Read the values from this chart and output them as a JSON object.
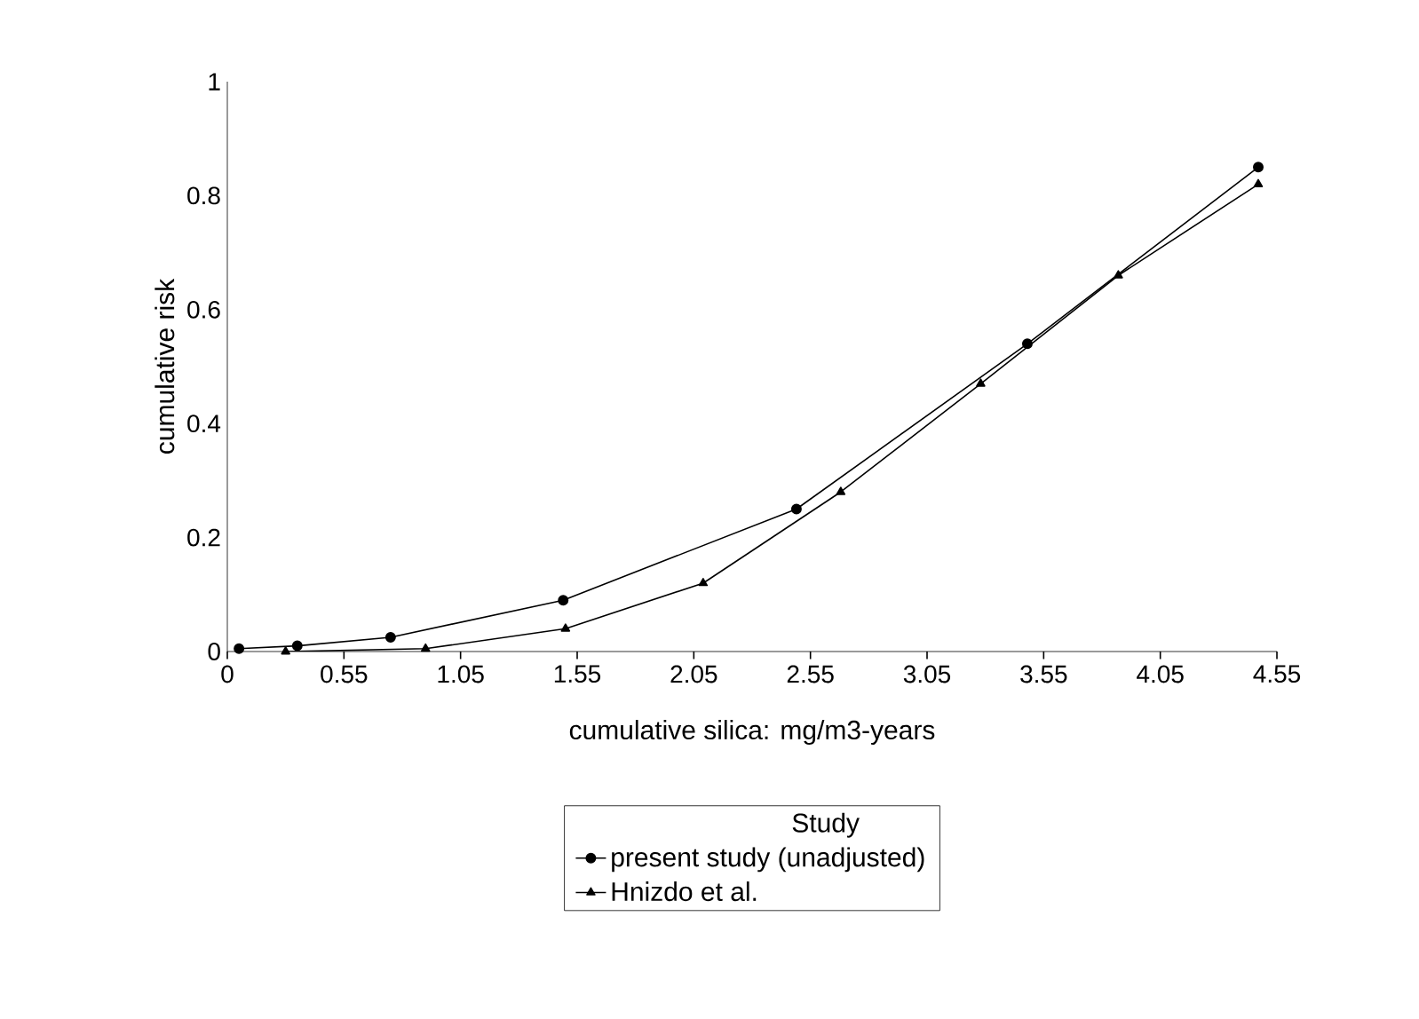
{
  "chart_data": {
    "type": "line",
    "xlabel": "cumulative silica: mg/m3-years",
    "ylabel": "cumulative risk",
    "legend_title": "Study",
    "legend": "bottom",
    "line_style": "solid",
    "xlim": [
      0.05,
      4.55
    ],
    "xticks": [
      {
        "value": 0.05,
        "label": "0"
      },
      0.55,
      1.05,
      1.55,
      2.05,
      2.55,
      3.05,
      3.55,
      4.05,
      4.55
    ],
    "ylim": [
      0,
      1
    ],
    "yticks": [
      0,
      0.2,
      0.4,
      0.6,
      0.8,
      1
    ],
    "series": [
      {
        "name": "present study (unadjusted)",
        "color": "#000000",
        "marker": "circle",
        "x": [
          0.1,
          0.35,
          0.75,
          1.49,
          2.49,
          3.48,
          4.47
        ],
        "values": [
          0.005,
          0.01,
          0.025,
          0.09,
          0.25,
          0.54,
          0.85
        ]
      },
      {
        "name": "Hnizdo et al.",
        "color": "#000000",
        "marker": "triangle",
        "x": [
          0.3,
          0.9,
          1.5,
          2.09,
          2.68,
          3.28,
          3.87,
          4.47
        ],
        "values": [
          0,
          0.005,
          0.04,
          0.12,
          0.28,
          0.47,
          0.66,
          0.82
        ]
      }
    ]
  }
}
